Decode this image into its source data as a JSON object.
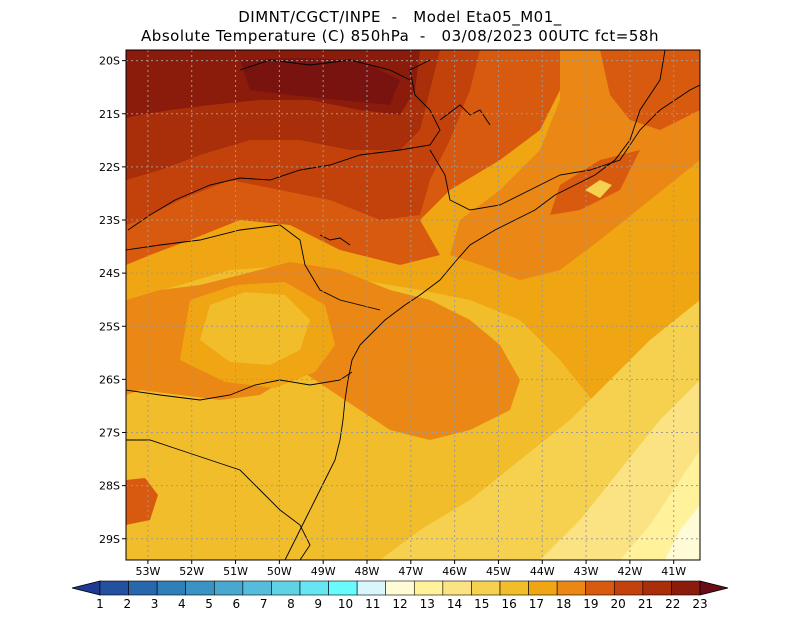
{
  "title_line1": "DIMNT/CGCT/INPE  -   Model Eta05_M01_",
  "title_line2": "Absolute Temperature (C) 850hPa  -   03/08/2023 00UTC fct=58h",
  "map": {
    "lat_labels": [
      "20S",
      "21S",
      "22S",
      "23S",
      "24S",
      "25S",
      "26S",
      "27S",
      "28S",
      "29S"
    ],
    "lon_labels": [
      "53W",
      "52W",
      "51W",
      "50W",
      "49W",
      "48W",
      "47W",
      "46W",
      "45W",
      "44W",
      "43W",
      "42W",
      "41W"
    ],
    "lat_range": [
      -29.4,
      -19.8
    ],
    "lon_range": [
      -53.5,
      -40.4
    ],
    "grid": true
  },
  "colorbar": {
    "labels": [
      "1",
      "2",
      "3",
      "4",
      "5",
      "6",
      "7",
      "8",
      "9",
      "10",
      "11",
      "12",
      "13",
      "14",
      "15",
      "16",
      "17",
      "18",
      "19",
      "20",
      "21",
      "22",
      "23"
    ],
    "colors": [
      "#1f3a93",
      "#23519f",
      "#2867ab",
      "#2f7fb8",
      "#3b93c4",
      "#48a8d0",
      "#55bddb",
      "#5fd2e6",
      "#66e6f2",
      "#68fafd",
      "#d8f6fb",
      "#fffbd6",
      "#fff29a",
      "#fbe383",
      "#f6d04f",
      "#f1bd2a",
      "#f0a612",
      "#eb8714",
      "#d85a0f",
      "#c3410b",
      "#a92e0a",
      "#8b1c0b",
      "#6a0c16"
    ]
  }
}
